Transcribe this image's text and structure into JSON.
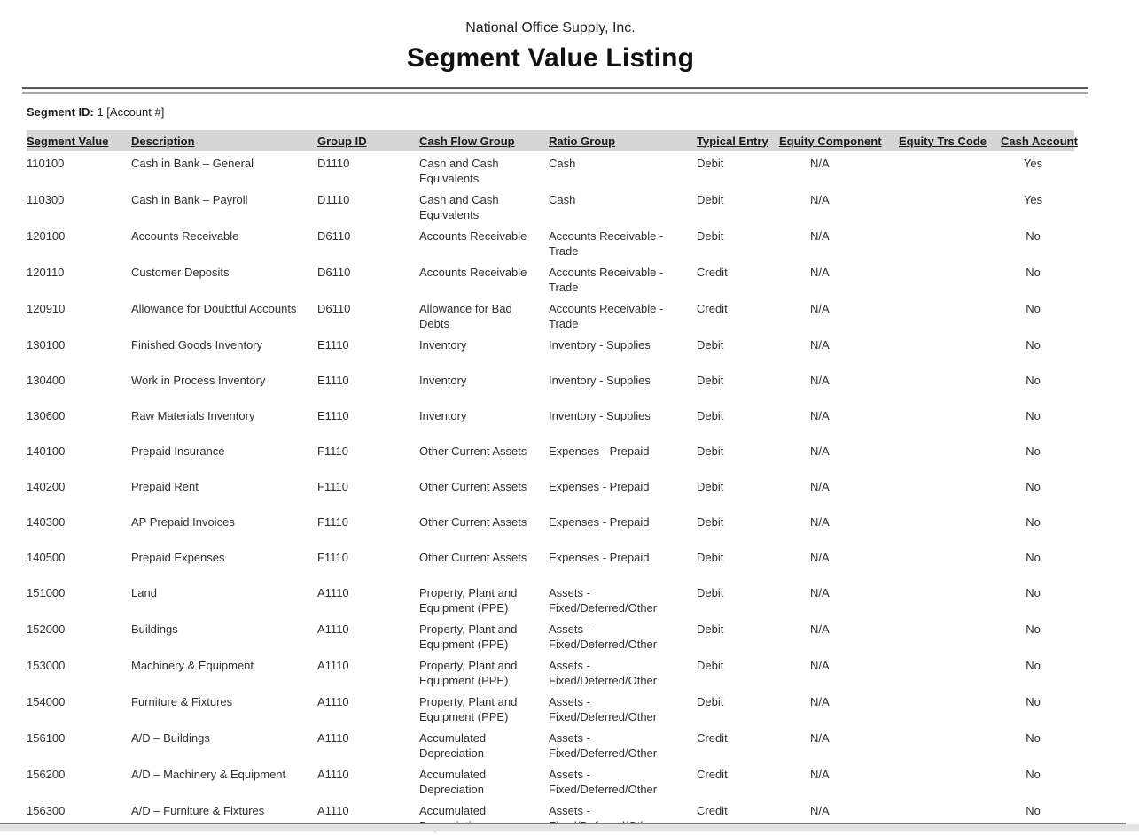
{
  "report": {
    "company": "National Office Supply, Inc.",
    "title": "Segment Value Listing",
    "segment_label": "Segment ID:",
    "segment_value": " 1 [Account #]"
  },
  "table": {
    "columns": [
      "Segment Value",
      "Description",
      "Group ID",
      "Cash Flow Group",
      "Ratio Group",
      "Typical Entry",
      "Equity Component",
      "Equity Trs Code",
      "Cash Account"
    ],
    "rows": [
      [
        "110100",
        "Cash in Bank – General",
        "D1110",
        "Cash and Cash Equivalents",
        "Cash",
        "Debit",
        "N/A",
        "",
        "Yes"
      ],
      [
        "110300",
        "Cash in Bank – Payroll",
        "D1110",
        "Cash and Cash Equivalents",
        "Cash",
        "Debit",
        "N/A",
        "",
        "Yes"
      ],
      [
        "120100",
        "Accounts Receivable",
        "D6110",
        "Accounts Receivable",
        "Accounts Receivable - Trade",
        "Debit",
        "N/A",
        "",
        "No"
      ],
      [
        "120110",
        "Customer Deposits",
        "D6110",
        "Accounts Receivable",
        "Accounts Receivable - Trade",
        "Credit",
        "N/A",
        "",
        "No"
      ],
      [
        "120910",
        "Allowance for Doubtful Accounts",
        "D6110",
        "Allowance for Bad Debts",
        "Accounts Receivable - Trade",
        "Credit",
        "N/A",
        "",
        "No"
      ],
      [
        "130100",
        "Finished Goods Inventory",
        "E1110",
        "Inventory",
        "Inventory - Supplies",
        "Debit",
        "N/A",
        "",
        "No"
      ],
      [
        "130400",
        "Work in Process Inventory",
        "E1110",
        "Inventory",
        "Inventory - Supplies",
        "Debit",
        "N/A",
        "",
        "No"
      ],
      [
        "130600",
        "Raw Materials Inventory",
        "E1110",
        "Inventory",
        "Inventory - Supplies",
        "Debit",
        "N/A",
        "",
        "No"
      ],
      [
        "140100",
        "Prepaid Insurance",
        "F1110",
        "Other Current Assets",
        "Expenses - Prepaid",
        "Debit",
        "N/A",
        "",
        "No"
      ],
      [
        "140200",
        "Prepaid Rent",
        "F1110",
        "Other Current Assets",
        "Expenses - Prepaid",
        "Debit",
        "N/A",
        "",
        "No"
      ],
      [
        "140300",
        "AP Prepaid Invoices",
        "F1110",
        "Other Current Assets",
        "Expenses - Prepaid",
        "Debit",
        "N/A",
        "",
        "No"
      ],
      [
        "140500",
        "Prepaid Expenses",
        "F1110",
        "Other Current Assets",
        "Expenses - Prepaid",
        "Debit",
        "N/A",
        "",
        "No"
      ],
      [
        "151000",
        "Land",
        "A1110",
        "Property, Plant and Equipment (PPE)",
        "Assets - Fixed/Deferred/Other",
        "Debit",
        "N/A",
        "",
        "No"
      ],
      [
        "152000",
        "Buildings",
        "A1110",
        "Property, Plant and Equipment (PPE)",
        "Assets - Fixed/Deferred/Other",
        "Debit",
        "N/A",
        "",
        "No"
      ],
      [
        "153000",
        "Machinery & Equipment",
        "A1110",
        "Property, Plant and Equipment (PPE)",
        "Assets - Fixed/Deferred/Other",
        "Debit",
        "N/A",
        "",
        "No"
      ],
      [
        "154000",
        "Furniture & Fixtures",
        "A1110",
        "Property, Plant and Equipment (PPE)",
        "Assets - Fixed/Deferred/Other",
        "Debit",
        "N/A",
        "",
        "No"
      ],
      [
        "156100",
        "A/D – Buildings",
        "A1110",
        "Accumulated Depreciation",
        "Assets - Fixed/Deferred/Other",
        "Credit",
        "N/A",
        "",
        "No"
      ],
      [
        "156200",
        "A/D – Machinery & Equipment",
        "A1110",
        "Accumulated Depreciation",
        "Assets - Fixed/Deferred/Other",
        "Credit",
        "N/A",
        "",
        "No"
      ],
      [
        "156300",
        "A/D – Furniture & Fixtures",
        "A1110",
        "Accumulated Depreciation",
        "Assets - Fixed/Deferred/Other",
        "Credit",
        "N/A",
        "",
        "No"
      ]
    ]
  }
}
